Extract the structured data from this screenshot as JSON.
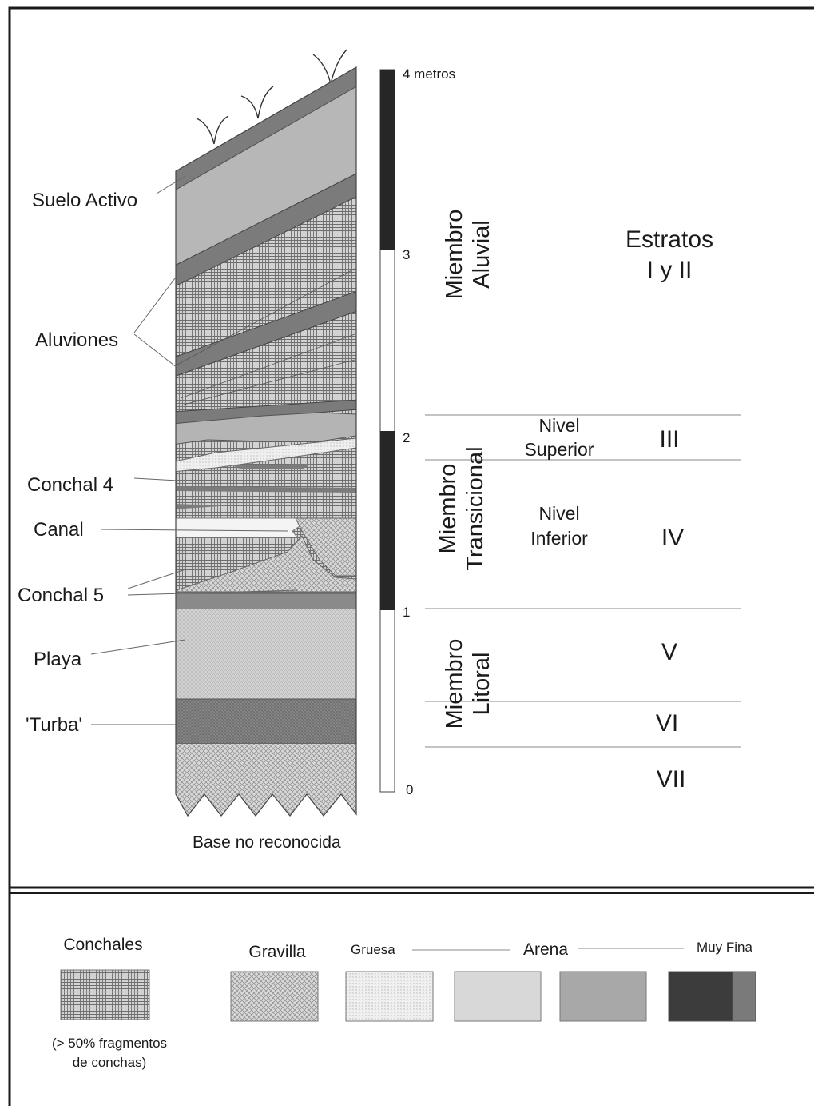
{
  "colors": {
    "frame": "#1a1a1a",
    "conchales_bg": "#cfcfcf",
    "gravilla_bg": "#d4d4d4",
    "arena_gruesa": "#eeeeee",
    "arena_media": "#d8d8d8",
    "arena_fina": "#a8a8a8",
    "arena_muy_fina_dark": "#3c3c3c",
    "arena_muy_fina_light": "#7a7a7a",
    "scale_black": "#262626"
  },
  "column_labels": {
    "suelo_activo": "Suelo Activo",
    "aluviones": "Aluviones",
    "conchal_4": "Conchal 4",
    "canal": "Canal",
    "conchal_5": "Conchal 5",
    "playa": "Playa",
    "turba": "'Turba'",
    "base": "Base no reconocida"
  },
  "scale": {
    "top_label": "4 metros",
    "tick_3": "3",
    "tick_2": "2",
    "tick_1": "1",
    "tick_0": "0"
  },
  "members": {
    "aluvial_line1": "Miembro",
    "aluvial_line2": "Aluvial",
    "transicional_line1": "Miembro",
    "transicional_line2": "Transicional",
    "litoral_line1": "Miembro",
    "litoral_line2": "Litoral"
  },
  "levels": {
    "superior_line1": "Nivel",
    "superior_line2": "Superior",
    "inferior_line1": "Nivel",
    "inferior_line2": "Inferior"
  },
  "strata": {
    "i_ii_line1": "Estratos",
    "i_ii_line2": "I y II",
    "iii": "III",
    "iv": "IV",
    "v": "V",
    "vi": "VI",
    "vii": "VII"
  },
  "legend": {
    "conchales": "Conchales",
    "conchales_note_line1": "(> 50% fragmentos",
    "conchales_note_line2": "de conchas)",
    "gravilla": "Gravilla",
    "gruesa": "Gruesa",
    "arena": "Arena",
    "muy_fina": "Muy Fina"
  }
}
